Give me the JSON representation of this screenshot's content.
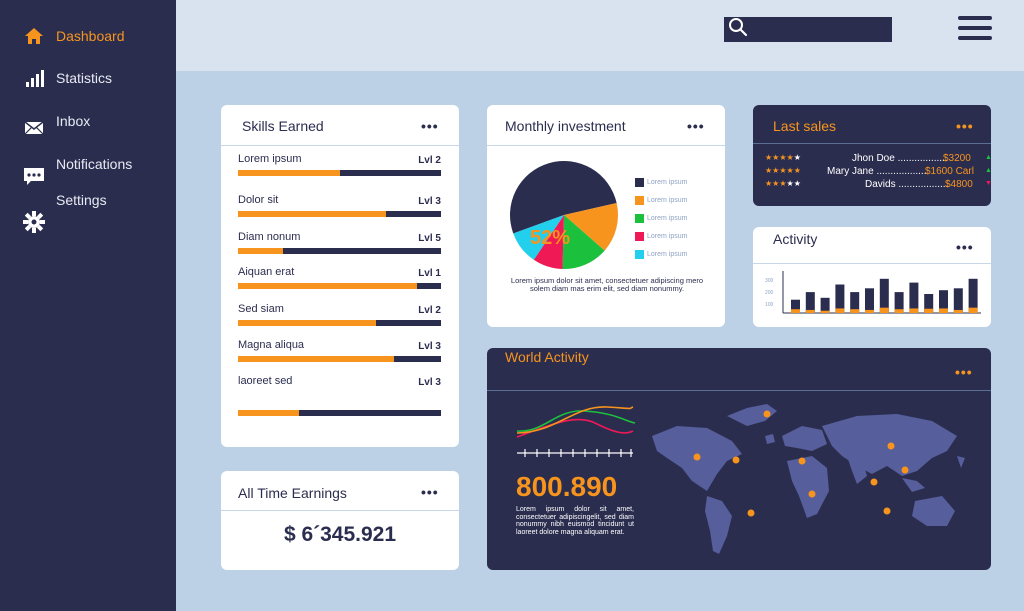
{
  "sidebar": {
    "items": [
      {
        "label": "Dashboard",
        "icon": "home-icon"
      },
      {
        "label": "Statistics",
        "icon": "bar-chart-icon"
      },
      {
        "label": "Inbox",
        "icon": "envelope-icon"
      },
      {
        "label": "Notifications",
        "icon": "chat-icon"
      },
      {
        "label": "Settings",
        "icon": "gear-icon"
      }
    ],
    "active_index": 0
  },
  "colors": {
    "navy": "#2b2d4f",
    "orange": "#f7941d",
    "background": "#bcd0e6",
    "topbar": "#d9e3f0"
  },
  "skills": {
    "title": "Skills Earned",
    "items": [
      {
        "name": "Lorem ipsum",
        "level": "Lvl 2",
        "progress": 0.5
      },
      {
        "name": "Dolor sit",
        "level": "Lvl 3",
        "progress": 0.73
      },
      {
        "name": "Diam nonum",
        "level": "Lvl 5",
        "progress": 0.22
      },
      {
        "name": "Aiquan erat",
        "level": "Lvl 1",
        "progress": 0.88
      },
      {
        "name": "Sed siam",
        "level": "Lvl 2",
        "progress": 0.68
      },
      {
        "name": "Magna aliqua",
        "level": "Lvl 3",
        "progress": 0.77
      },
      {
        "name": "laoreet sed",
        "level": "Lvl 3",
        "progress": 0.3
      }
    ]
  },
  "earnings": {
    "title": "All Time Earnings",
    "value": "$ 6´345.921"
  },
  "investment": {
    "title": "Monthly investment",
    "percent_label": "52%",
    "legend": [
      "Lorem ipsum",
      "Lorem ipsum",
      "Lorem ipsum",
      "Lorem ipsum",
      "Lorem ipsum"
    ],
    "caption": "Lorem ipsum dolor sit amet, consectetuer adipiscing mero solem diam mas erim elit, sed diam nonummy.",
    "slices": [
      {
        "value": 52,
        "color": "#2b2d4f"
      },
      {
        "value": 15,
        "color": "#f7941d"
      },
      {
        "value": 14,
        "color": "#1bc03d"
      },
      {
        "value": 9,
        "color": "#ef1956"
      },
      {
        "value": 10,
        "color": "#22d0ee"
      }
    ]
  },
  "last_sales": {
    "title": "Last sales",
    "rows": [
      {
        "stars": 4,
        "name": "Jhon Doe",
        "amount": "$3200",
        "trend": "up"
      },
      {
        "stars": 5,
        "name": "Mary Jane",
        "amount": "$1600 Carl",
        "trend": "up"
      },
      {
        "stars": 3,
        "name": "Davids",
        "amount": "$4800",
        "trend": "down"
      }
    ]
  },
  "activity": {
    "title": "Activity",
    "yticks": [
      "300",
      "200",
      "100"
    ],
    "bars": [
      {
        "navy": 0.35,
        "orange": 0.25
      },
      {
        "navy": 0.55,
        "orange": 0.2
      },
      {
        "navy": 0.4,
        "orange": 0.15
      },
      {
        "navy": 0.75,
        "orange": 0.3
      },
      {
        "navy": 0.55,
        "orange": 0.25
      },
      {
        "navy": 0.65,
        "orange": 0.2
      },
      {
        "navy": 0.9,
        "orange": 0.35
      },
      {
        "navy": 0.55,
        "orange": 0.25
      },
      {
        "navy": 0.8,
        "orange": 0.3
      },
      {
        "navy": 0.5,
        "orange": 0.28
      },
      {
        "navy": 0.6,
        "orange": 0.3
      },
      {
        "navy": 0.65,
        "orange": 0.2
      },
      {
        "navy": 0.9,
        "orange": 0.35
      }
    ]
  },
  "world": {
    "title": "World Activity",
    "value": "800.890",
    "caption": "Lorem ipsum dolor sit amet, consectetuer adipiscingelit, sed diam nonummy nibh euismod tincidunt ut laoreet dolore magna aliquam erat."
  }
}
